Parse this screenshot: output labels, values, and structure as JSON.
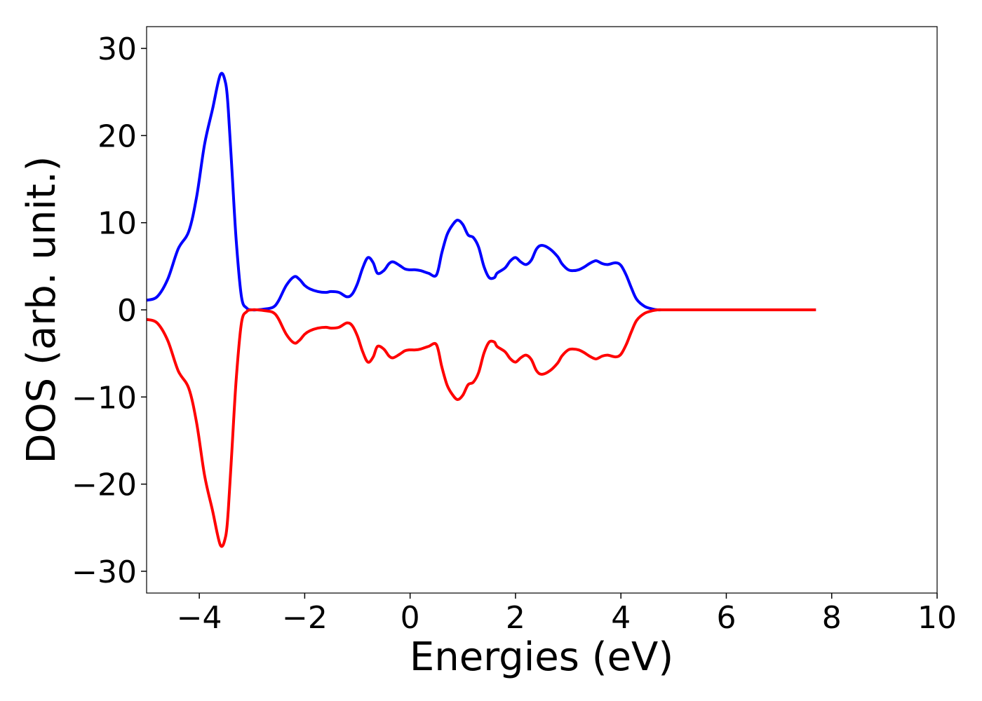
{
  "chart_data": {
    "type": "line",
    "title": "",
    "xlabel": "Energies (eV)",
    "ylabel": "DOS (arb. unit.)",
    "xlim": [
      -5,
      10
    ],
    "ylim": [
      -32.5,
      32.5
    ],
    "xticks": [
      -4,
      -2,
      0,
      2,
      4,
      6,
      8,
      10
    ],
    "yticks": [
      -30,
      -20,
      -10,
      0,
      10,
      20,
      30
    ],
    "xtick_labels": [
      "−4",
      "−2",
      "0",
      "2",
      "4",
      "6",
      "8",
      "10"
    ],
    "ytick_labels": [
      "−30",
      "−20",
      "−10",
      "0",
      "10",
      "20",
      "30"
    ],
    "grid": false,
    "legend": "none",
    "series": [
      {
        "color": "#0000ff",
        "x": [
          -5.0,
          -4.8,
          -4.6,
          -4.4,
          -4.2,
          -4.05,
          -3.9,
          -3.75,
          -3.6,
          -3.5,
          -3.45,
          -3.38,
          -3.3,
          -3.2,
          -3.1,
          -3.0,
          -2.9,
          -2.75,
          -2.6,
          -2.5,
          -2.35,
          -2.2,
          -2.1,
          -2.0,
          -1.9,
          -1.75,
          -1.6,
          -1.5,
          -1.35,
          -1.2,
          -1.1,
          -1.0,
          -0.9,
          -0.8,
          -0.7,
          -0.62,
          -0.5,
          -0.4,
          -0.32,
          -0.2,
          -0.1,
          -0.02,
          0.1,
          0.2,
          0.35,
          0.5,
          0.6,
          0.7,
          0.8,
          0.9,
          1.0,
          1.1,
          1.2,
          1.3,
          1.4,
          1.5,
          1.6,
          1.65,
          1.8,
          1.9,
          2.0,
          2.1,
          2.2,
          2.3,
          2.4,
          2.5,
          2.65,
          2.8,
          2.88,
          3.0,
          3.1,
          3.2,
          3.3,
          3.4,
          3.5,
          3.55,
          3.65,
          3.75,
          3.9,
          4.0,
          4.1,
          4.2,
          4.3,
          4.45,
          4.6,
          4.7,
          4.8,
          4.9,
          5.0,
          5.15,
          5.25,
          5.4,
          5.55,
          5.7,
          5.85,
          6.0,
          6.2,
          6.5,
          7.0,
          7.5,
          7.7
        ],
        "y": [
          1.1,
          1.5,
          3.5,
          7.0,
          9.0,
          13.0,
          19.0,
          23.0,
          27.0,
          26.0,
          23.0,
          16.0,
          8.0,
          1.5,
          0.2,
          0.0,
          0.0,
          0.1,
          0.3,
          1.0,
          2.8,
          3.8,
          3.5,
          2.8,
          2.4,
          2.1,
          2.0,
          2.1,
          2.0,
          1.5,
          1.8,
          3.0,
          4.8,
          6.0,
          5.4,
          4.2,
          4.5,
          5.3,
          5.5,
          5.1,
          4.7,
          4.6,
          4.6,
          4.5,
          4.2,
          4.0,
          6.5,
          8.6,
          9.7,
          10.3,
          9.8,
          8.6,
          8.3,
          7.2,
          5.0,
          3.7,
          3.7,
          4.2,
          4.8,
          5.6,
          6.0,
          5.5,
          5.2,
          5.7,
          7.0,
          7.4,
          7.0,
          6.1,
          5.3,
          4.6,
          4.5,
          4.6,
          4.9,
          5.3,
          5.6,
          5.6,
          5.3,
          5.2,
          5.4,
          5.1,
          4.0,
          2.5,
          1.2,
          0.4,
          0.1,
          0.0,
          0.0,
          0.0,
          0.0,
          0.0,
          0.0,
          0.0,
          0.0,
          0.0,
          0.0,
          0.0,
          0.0,
          0.0,
          0.0,
          0.0,
          0.0
        ]
      },
      {
        "color": "#ff0000",
        "x": [
          -5.0,
          -4.8,
          -4.6,
          -4.4,
          -4.2,
          -4.05,
          -3.9,
          -3.75,
          -3.6,
          -3.5,
          -3.45,
          -3.38,
          -3.3,
          -3.2,
          -3.1,
          -3.0,
          -2.9,
          -2.75,
          -2.6,
          -2.5,
          -2.35,
          -2.2,
          -2.1,
          -2.0,
          -1.9,
          -1.75,
          -1.6,
          -1.5,
          -1.35,
          -1.2,
          -1.1,
          -1.0,
          -0.9,
          -0.8,
          -0.7,
          -0.62,
          -0.5,
          -0.4,
          -0.32,
          -0.2,
          -0.1,
          -0.02,
          0.1,
          0.2,
          0.35,
          0.5,
          0.6,
          0.7,
          0.8,
          0.9,
          1.0,
          1.1,
          1.2,
          1.3,
          1.4,
          1.5,
          1.6,
          1.65,
          1.8,
          1.9,
          2.0,
          2.1,
          2.2,
          2.3,
          2.4,
          2.5,
          2.65,
          2.8,
          2.88,
          3.0,
          3.1,
          3.2,
          3.3,
          3.4,
          3.5,
          3.55,
          3.65,
          3.75,
          3.9,
          4.0,
          4.1,
          4.2,
          4.3,
          4.45,
          4.6,
          4.7,
          4.8,
          4.9,
          5.0,
          5.15,
          5.25,
          5.4,
          5.55,
          5.7,
          5.85,
          6.0,
          6.2,
          6.5,
          7.0,
          7.5,
          7.7
        ],
        "y": [
          -1.1,
          -1.5,
          -3.5,
          -7.0,
          -9.0,
          -13.0,
          -19.0,
          -23.0,
          -27.0,
          -26.0,
          -23.0,
          -16.0,
          -8.0,
          -1.5,
          -0.2,
          0.0,
          0.0,
          -0.1,
          -0.3,
          -1.0,
          -2.8,
          -3.8,
          -3.5,
          -2.8,
          -2.4,
          -2.1,
          -2.0,
          -2.1,
          -2.0,
          -1.5,
          -1.8,
          -3.0,
          -4.8,
          -6.0,
          -5.4,
          -4.2,
          -4.5,
          -5.3,
          -5.5,
          -5.1,
          -4.7,
          -4.6,
          -4.6,
          -4.5,
          -4.2,
          -4.0,
          -6.5,
          -8.6,
          -9.7,
          -10.3,
          -9.8,
          -8.6,
          -8.3,
          -7.2,
          -5.0,
          -3.7,
          -3.7,
          -4.2,
          -4.8,
          -5.6,
          -6.0,
          -5.5,
          -5.2,
          -5.7,
          -7.0,
          -7.4,
          -7.0,
          -6.1,
          -5.3,
          -4.6,
          -4.5,
          -4.6,
          -4.9,
          -5.3,
          -5.6,
          -5.6,
          -5.3,
          -5.2,
          -5.4,
          -5.1,
          -4.0,
          -2.5,
          -1.2,
          -0.4,
          -0.1,
          0.0,
          0.0,
          0.0,
          0.0,
          0.0,
          0.0,
          0.0,
          0.0,
          0.0,
          0.0,
          0.0,
          0.0,
          0.0,
          0.0,
          0.0,
          0.0
        ]
      }
    ]
  }
}
